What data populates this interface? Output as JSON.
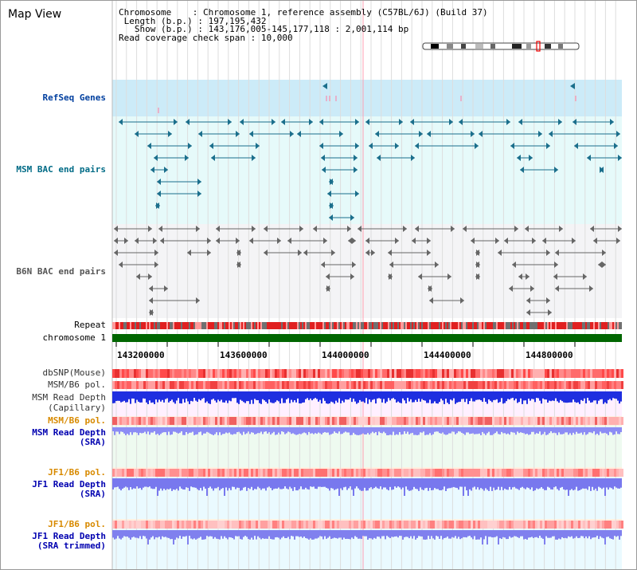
{
  "title": "Map View",
  "info": {
    "chromosome_label": "Chromosome",
    "chromosome_value": "Chromosome 1, reference assembly (C57BL/6J) (Build 37)",
    "length_label": "Length (b.p.)",
    "length_value": "197,195,432",
    "show_label": "Show (b.p.)",
    "show_value": "143,176,005-145,177,118 : 2,001,114 bp",
    "coverage_label": "Read coverage check span",
    "coverage_value": "10,000"
  },
  "tracks": {
    "refseq": "RefSeq Genes",
    "msm_bac": "MSM BAC end pairs",
    "b6n_bac": "B6N BAC end pairs",
    "repeat": "Repeat",
    "chromosome": "chromosome 1",
    "dbsnp": "dbSNP(Mouse)",
    "msm_b6_pol_1": "MSM/B6 pol.",
    "msm_depth_cap_1": "MSM Read Depth",
    "msm_depth_cap_2": "(Capillary)",
    "msm_b6_pol_2": "MSM/B6 pol.",
    "msm_depth_sra_1": "MSM Read Depth",
    "msm_depth_sra_2": "(SRA)",
    "jf1_b6_pol_1": "JF1/B6 pol.",
    "jf1_depth_sra_1": "JF1 Read Depth",
    "jf1_depth_sra_2": "(SRA)",
    "jf1_b6_pol_2": "JF1/B6 pol.",
    "jf1_depth_trim_1": "JF1 Read Depth",
    "jf1_depth_trim_2": "(SRA trimmed)"
  },
  "axis": {
    "ticks": [
      "143200000",
      "143600000",
      "144000000",
      "144400000",
      "144800000"
    ]
  },
  "colors": {
    "refseq_bg": "#ccebf8",
    "msm_bac_bg": "#e6fafa",
    "b6n_bac_bg": "#f4f4f6",
    "msm_feature": "#1b6f8c",
    "b6n_feature": "#666666",
    "chromosome": "#006600",
    "snp": "#ff5a5a",
    "depth_cap": "#1f2fe0",
    "depth_sra": "#8c8cf5",
    "pol_orange_bg": "#fff0e0",
    "depth_bg": "#eafaff"
  }
}
